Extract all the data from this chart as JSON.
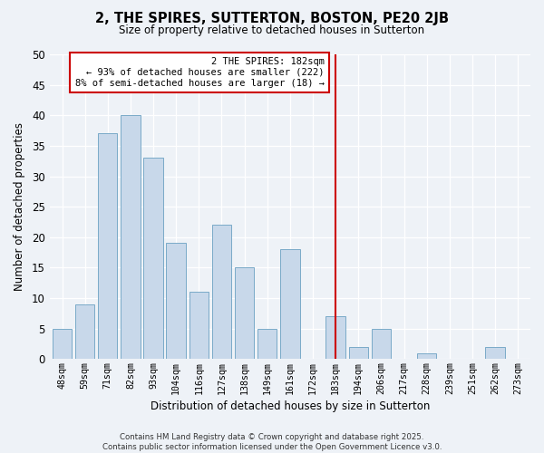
{
  "title": "2, THE SPIRES, SUTTERTON, BOSTON, PE20 2JB",
  "subtitle": "Size of property relative to detached houses in Sutterton",
  "xlabel": "Distribution of detached houses by size in Sutterton",
  "ylabel": "Number of detached properties",
  "bin_labels": [
    "48sqm",
    "59sqm",
    "71sqm",
    "82sqm",
    "93sqm",
    "104sqm",
    "116sqm",
    "127sqm",
    "138sqm",
    "149sqm",
    "161sqm",
    "172sqm",
    "183sqm",
    "194sqm",
    "206sqm",
    "217sqm",
    "228sqm",
    "239sqm",
    "251sqm",
    "262sqm",
    "273sqm"
  ],
  "counts": [
    5,
    9,
    37,
    40,
    33,
    19,
    11,
    22,
    15,
    5,
    18,
    0,
    7,
    2,
    5,
    0,
    1,
    0,
    0,
    2,
    0
  ],
  "bar_color": "#c8d8ea",
  "bar_edge_color": "#7aaac8",
  "vline_x": 12,
  "vline_color": "#cc0000",
  "annotation_text": "2 THE SPIRES: 182sqm\n← 93% of detached houses are smaller (222)\n8% of semi-detached houses are larger (18) →",
  "annotation_box_color": "#cc0000",
  "ylim": [
    0,
    50
  ],
  "yticks": [
    0,
    5,
    10,
    15,
    20,
    25,
    30,
    35,
    40,
    45,
    50
  ],
  "background_color": "#eef2f7",
  "grid_color": "#ffffff",
  "footnote": "Contains HM Land Registry data © Crown copyright and database right 2025.\nContains public sector information licensed under the Open Government Licence v3.0."
}
